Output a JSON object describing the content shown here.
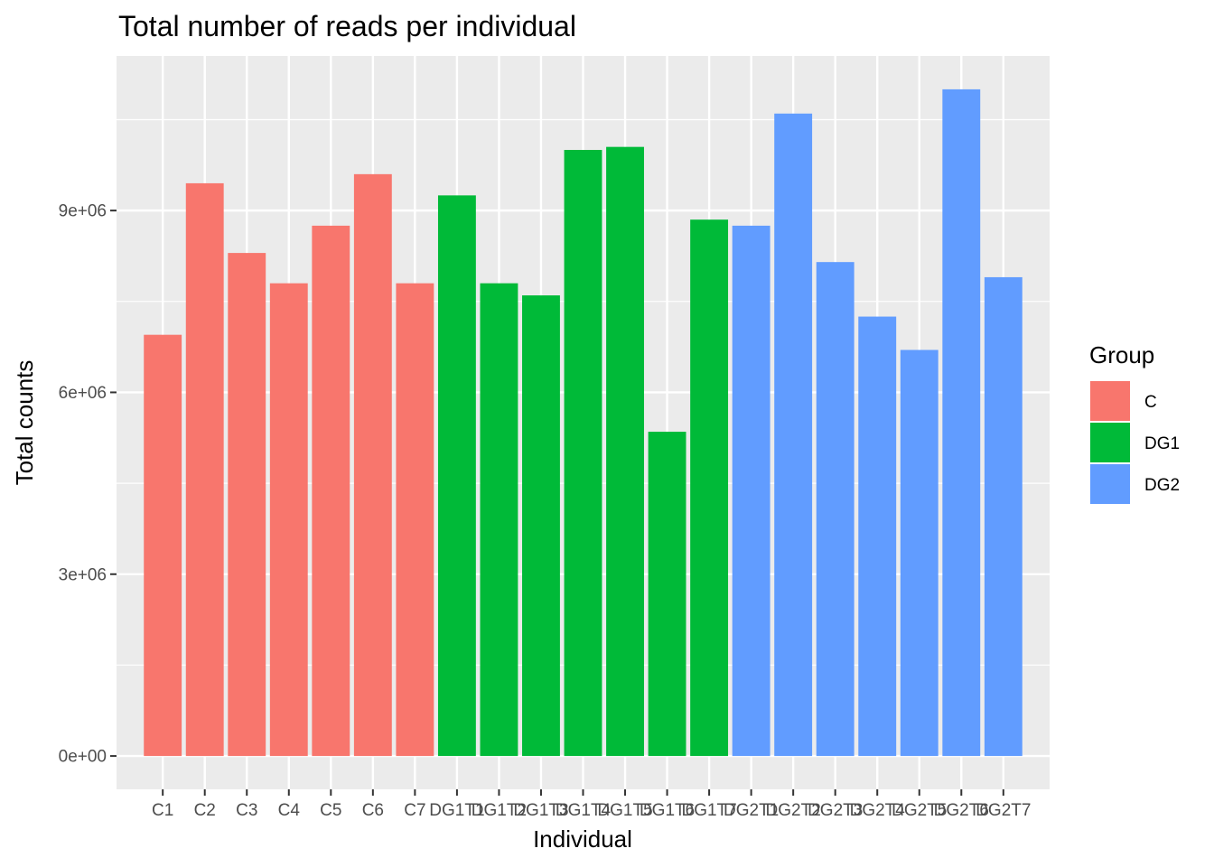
{
  "chart_data": {
    "type": "bar",
    "title": "Total number of reads per individual",
    "xlabel": "Individual",
    "ylabel": "Total counts",
    "ylim": [
      -550000,
      11550000
    ],
    "yticks": [
      0,
      3000000,
      6000000,
      9000000
    ],
    "ytick_labels": [
      "0e+00",
      "3e+06",
      "6e+06",
      "9e+06"
    ],
    "grid": true,
    "legend_position": "right",
    "legend": {
      "title": "Group",
      "entries": [
        {
          "label": "C",
          "color": "#F8766D"
        },
        {
          "label": "DG1",
          "color": "#00BA38"
        },
        {
          "label": "DG2",
          "color": "#619CFF"
        }
      ]
    },
    "categories": [
      "C1",
      "C2",
      "C3",
      "C4",
      "C5",
      "C6",
      "C7",
      "DG1T1",
      "DG1T2",
      "DG1T3",
      "DG1T4",
      "DG1T5",
      "DG1T6",
      "DG1T7",
      "DG2T1",
      "DG2T2",
      "DG2T3",
      "DG2T4",
      "DG2T5",
      "DG2T6",
      "DG2T7"
    ],
    "groups": [
      "C",
      "C",
      "C",
      "C",
      "C",
      "C",
      "C",
      "DG1",
      "DG1",
      "DG1",
      "DG1",
      "DG1",
      "DG1",
      "DG1",
      "DG2",
      "DG2",
      "DG2",
      "DG2",
      "DG2",
      "DG2",
      "DG2"
    ],
    "values": [
      6950000,
      9450000,
      8300000,
      7800000,
      8750000,
      9600000,
      7800000,
      9250000,
      7800000,
      7600000,
      10000000,
      10050000,
      5350000,
      8850000,
      8750000,
      10600000,
      8150000,
      7250000,
      6700000,
      11000000,
      7900000
    ]
  }
}
